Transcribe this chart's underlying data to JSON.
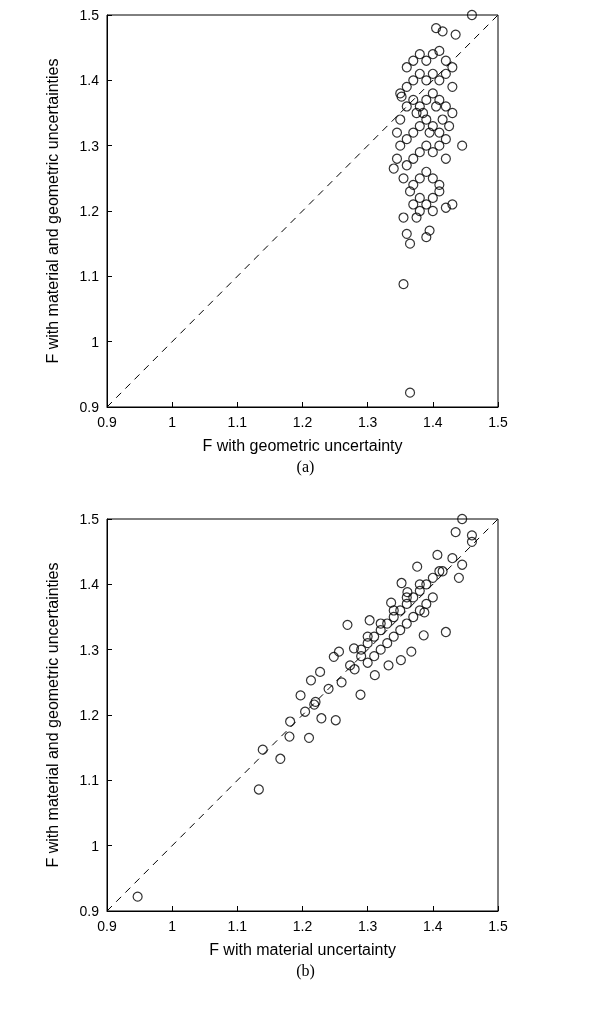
{
  "chart_data": [
    {
      "type": "scatter",
      "xlabel": "F with geometric uncertainty",
      "ylabel": "F with material and geometric uncertainties",
      "annotations": [
        "(a)"
      ],
      "xlim": [
        0.9,
        1.5
      ],
      "ylim": [
        0.9,
        1.5
      ],
      "xticks": [
        0.9,
        1,
        1.1,
        1.2,
        1.3,
        1.4,
        1.5
      ],
      "yticks": [
        0.9,
        1,
        1.1,
        1.2,
        1.3,
        1.4,
        1.5
      ],
      "marker": "circle",
      "series": [
        {
          "color": "#000000",
          "x": [
            1.46,
            1.435,
            1.415,
            1.405,
            1.445,
            1.43,
            1.42,
            1.365,
            1.36,
            1.355,
            1.355,
            1.365,
            1.35,
            1.352,
            1.345,
            1.34,
            1.375,
            1.38,
            1.395,
            1.39,
            1.36,
            1.37,
            1.38,
            1.39,
            1.4,
            1.41,
            1.42,
            1.43,
            1.36,
            1.37,
            1.38,
            1.39,
            1.4,
            1.41,
            1.42,
            1.43,
            1.35,
            1.36,
            1.37,
            1.38,
            1.39,
            1.4,
            1.41,
            1.42,
            1.43,
            1.35,
            1.36,
            1.37,
            1.38,
            1.39,
            1.4,
            1.41,
            1.42,
            1.36,
            1.37,
            1.38,
            1.39,
            1.4,
            1.41,
            1.42,
            1.37,
            1.38,
            1.39,
            1.4,
            1.41,
            1.38,
            1.39,
            1.4,
            1.41,
            1.37,
            1.4,
            1.385,
            1.395,
            1.405,
            1.375,
            1.415,
            1.425,
            1.345,
            1.355,
            1.365
          ],
          "values": [
            1.5,
            1.47,
            1.475,
            1.48,
            1.3,
            1.21,
            1.205,
            1.15,
            1.165,
            1.19,
            1.088,
            0.922,
            1.38,
            1.375,
            1.28,
            1.265,
            1.19,
            1.2,
            1.17,
            1.16,
            1.42,
            1.43,
            1.44,
            1.43,
            1.44,
            1.445,
            1.43,
            1.42,
            1.39,
            1.4,
            1.41,
            1.4,
            1.41,
            1.4,
            1.41,
            1.39,
            1.34,
            1.36,
            1.37,
            1.36,
            1.37,
            1.38,
            1.37,
            1.36,
            1.35,
            1.3,
            1.31,
            1.32,
            1.33,
            1.34,
            1.33,
            1.32,
            1.31,
            1.27,
            1.28,
            1.29,
            1.3,
            1.29,
            1.3,
            1.28,
            1.24,
            1.25,
            1.26,
            1.25,
            1.24,
            1.22,
            1.21,
            1.22,
            1.23,
            1.21,
            1.2,
            1.35,
            1.32,
            1.36,
            1.35,
            1.34,
            1.33,
            1.32,
            1.25,
            1.23
          ]
        },
        {
          "type": "line",
          "color": "#000000",
          "marker": "none",
          "line_style": "dashed",
          "x": [
            0.9,
            1.5
          ],
          "values": [
            0.9,
            1.5
          ]
        }
      ]
    },
    {
      "type": "scatter",
      "xlabel": "F with material uncertainty",
      "ylabel": "F with material and geometric uncertainties",
      "annotations": [
        "(b)"
      ],
      "xlim": [
        0.9,
        1.5
      ],
      "ylim": [
        0.9,
        1.5
      ],
      "xticks": [
        0.9,
        1,
        1.1,
        1.2,
        1.3,
        1.4,
        1.5
      ],
      "yticks": [
        0.9,
        1,
        1.1,
        1.2,
        1.3,
        1.4,
        1.5
      ],
      "marker": "circle",
      "series": [
        {
          "color": "#000000",
          "x": [
            0.947,
            1.133,
            1.139,
            1.166,
            1.18,
            1.21,
            1.181,
            1.197,
            1.213,
            1.251,
            1.269,
            1.289,
            1.367,
            1.386,
            1.352,
            1.376,
            1.407,
            1.229,
            1.218,
            1.204,
            1.227,
            1.248,
            1.256,
            1.273,
            1.279,
            1.311,
            1.332,
            1.303,
            1.336,
            1.361,
            1.387,
            1.351,
            1.445,
            1.46,
            1.46,
            1.435,
            1.43,
            1.445,
            1.42,
            1.44,
            1.415,
            1.29,
            1.3,
            1.31,
            1.32,
            1.33,
            1.34,
            1.35,
            1.36,
            1.37,
            1.38,
            1.39,
            1.4,
            1.41,
            1.3,
            1.31,
            1.32,
            1.33,
            1.34,
            1.35,
            1.36,
            1.37,
            1.38,
            1.39,
            1.4,
            1.28,
            1.29,
            1.3,
            1.32,
            1.34,
            1.36,
            1.38,
            1.26,
            1.24,
            1.22
          ],
          "values": [
            0.922,
            1.086,
            1.147,
            1.133,
            1.167,
            1.165,
            1.19,
            1.23,
            1.253,
            1.192,
            1.338,
            1.231,
            1.297,
            1.322,
            1.402,
            1.427,
            1.445,
            1.195,
            1.216,
            1.205,
            1.266,
            1.289,
            1.297,
            1.276,
            1.302,
            1.261,
            1.276,
            1.345,
            1.372,
            1.388,
            1.357,
            1.284,
            1.5,
            1.475,
            1.465,
            1.48,
            1.44,
            1.43,
            1.327,
            1.41,
            1.42,
            1.3,
            1.31,
            1.32,
            1.33,
            1.34,
            1.35,
            1.36,
            1.37,
            1.38,
            1.39,
            1.4,
            1.41,
            1.42,
            1.28,
            1.29,
            1.3,
            1.31,
            1.32,
            1.33,
            1.34,
            1.35,
            1.36,
            1.37,
            1.38,
            1.27,
            1.29,
            1.32,
            1.34,
            1.36,
            1.38,
            1.4,
            1.25,
            1.24,
            1.22
          ]
        },
        {
          "type": "line",
          "color": "#000000",
          "marker": "none",
          "line_style": "dashed",
          "x": [
            0.9,
            1.5
          ],
          "values": [
            0.9,
            1.5
          ]
        }
      ]
    }
  ]
}
